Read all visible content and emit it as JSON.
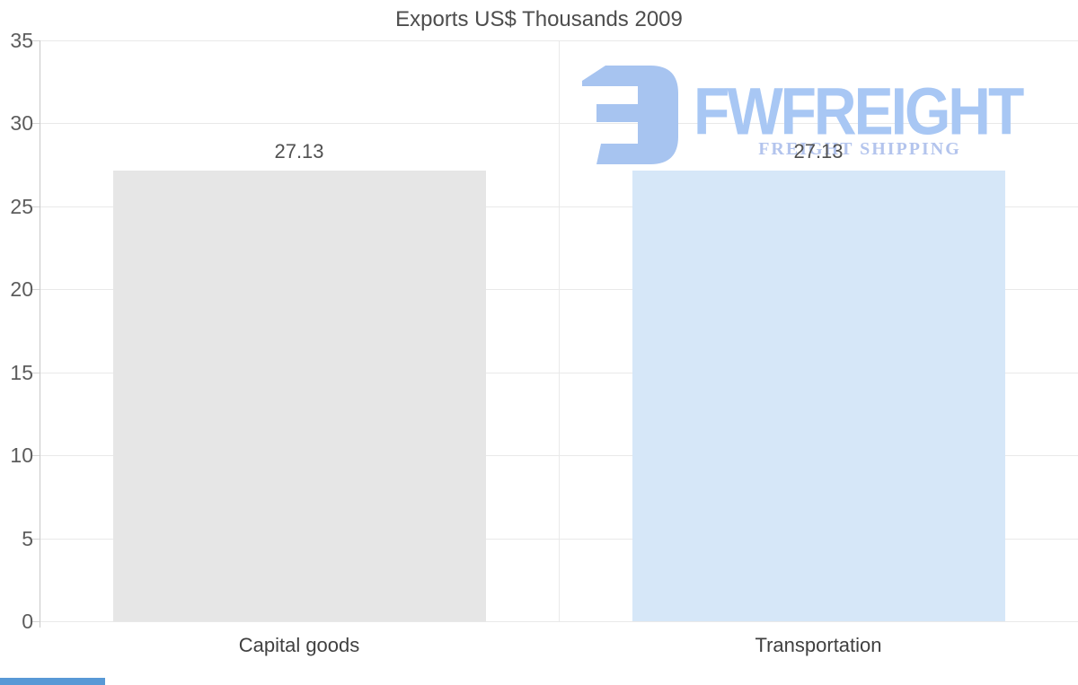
{
  "title": "Exports US$ Thousands 2009",
  "chart_data": {
    "type": "bar",
    "title": "Exports US$ Thousands 2009",
    "categories": [
      "Capital goods",
      "Transportation"
    ],
    "values": [
      27.13,
      27.13
    ],
    "data_labels": [
      "27.13",
      "27.13"
    ],
    "bar_colors": [
      "#e6e6e6",
      "#d6e7f8"
    ],
    "xlabel": "",
    "ylabel": "",
    "ylim": [
      0,
      35
    ],
    "yticks": [
      0,
      5,
      10,
      15,
      20,
      25,
      30,
      35
    ],
    "grid": "horizontal gridlines at each y tick plus one vertical category divider",
    "legend": "none"
  },
  "watermark": {
    "brand": "FWFREIGHT",
    "tagline": "FREIGHT SHIPPING",
    "icon": "fwfreight-logo-icon",
    "icon_color": "#a7c4f0",
    "brand_color": "#a8c7f4",
    "tagline_color": "#b3c4ed"
  },
  "colors": {
    "background": "#ffffff",
    "gridline": "#e9e9e9",
    "axis_line": "#c9c9c9",
    "title_text": "#4d4d4d",
    "y_tick_text": "#5c5c5c",
    "x_tick_text": "#404040",
    "value_label_text": "#505050",
    "bar_capital_goods": "#e6e6e6",
    "bar_transportation": "#d6e7f8",
    "bottom_strip": "#5899d6"
  }
}
